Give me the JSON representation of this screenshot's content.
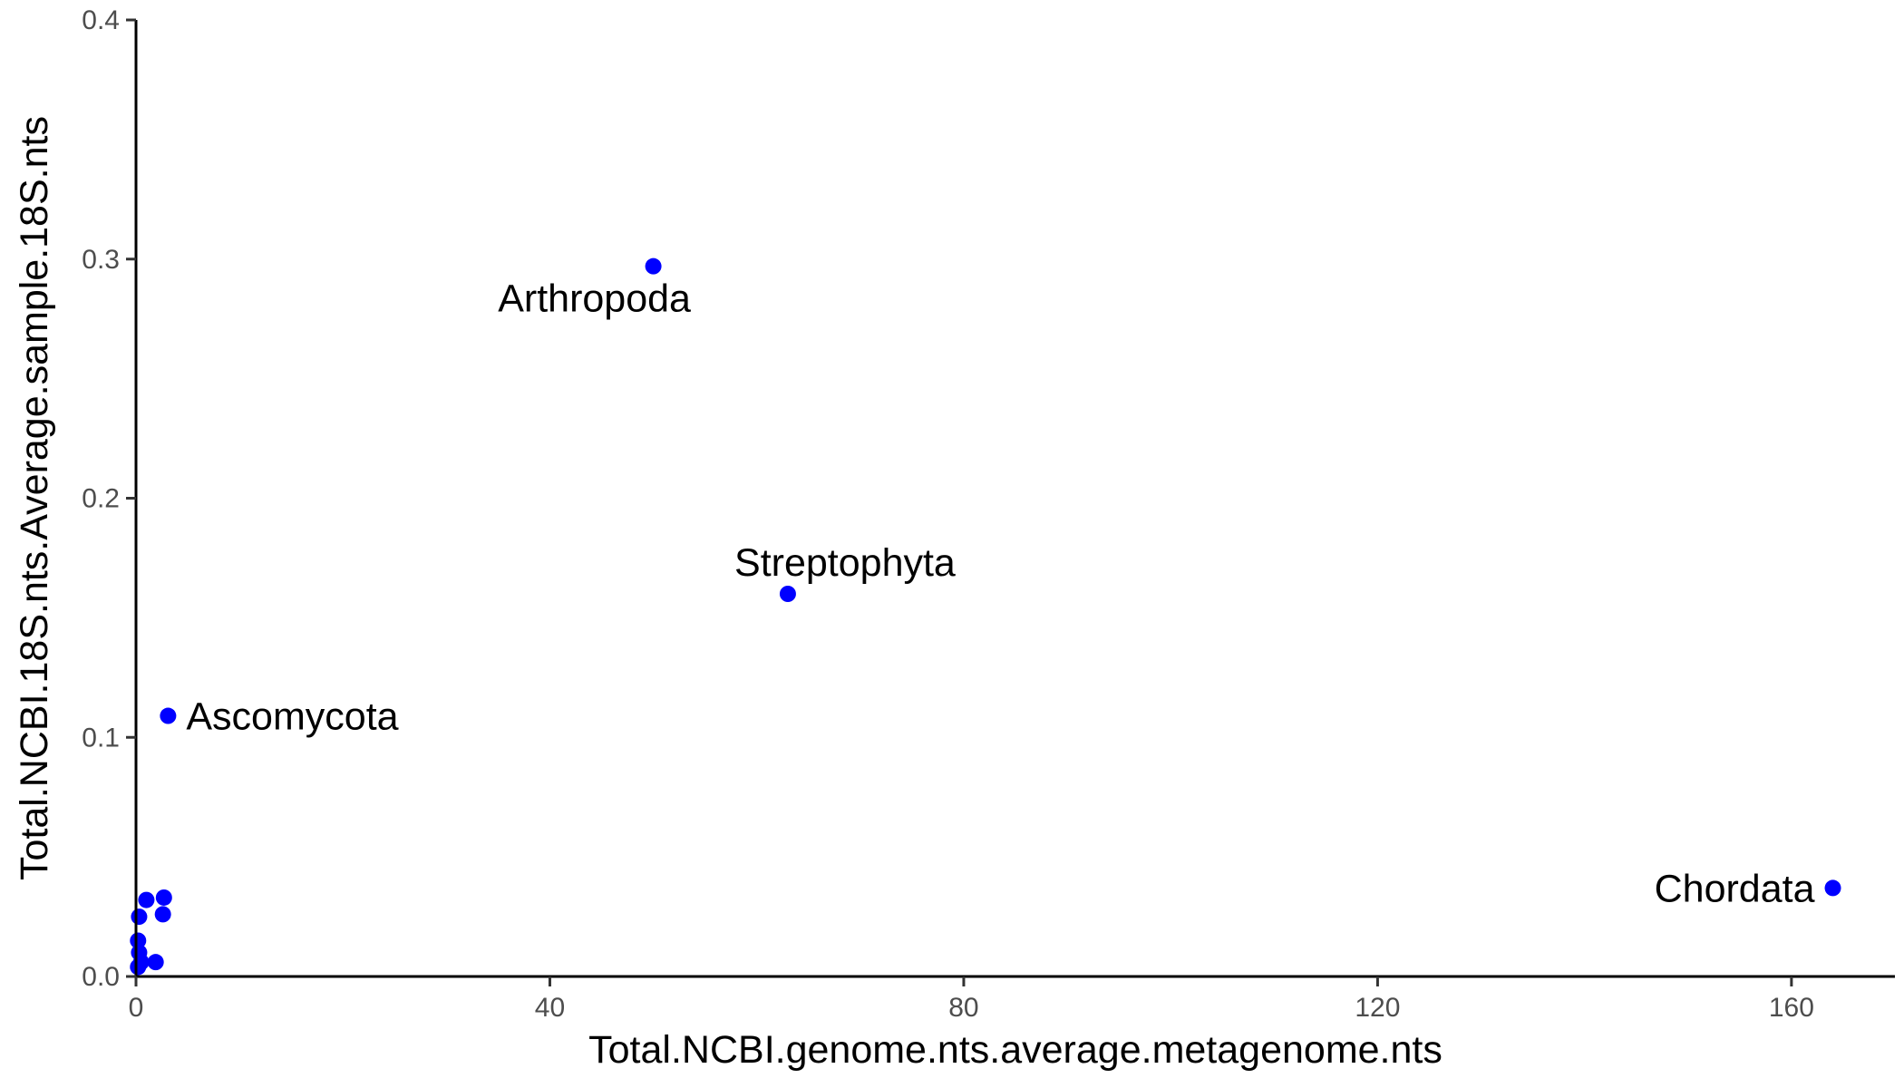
{
  "chart_data": {
    "type": "scatter",
    "title": "",
    "xlabel": "Total.NCBI.genome.nts.average.metagenome.nts",
    "ylabel": "Total.NCBI.18S.nts.Average.sample.18S.nts",
    "xlim": [
      0,
      170
    ],
    "ylim": [
      0,
      0.4
    ],
    "x_ticks": [
      0,
      40,
      80,
      120,
      160
    ],
    "x_tick_labels": [
      "0",
      "40",
      "80",
      "120",
      "160"
    ],
    "y_ticks": [
      0,
      0.1,
      0.2,
      0.3,
      0.4
    ],
    "y_tick_labels": [
      "0.0",
      "0.1",
      "0.2",
      "0.3",
      "0.4"
    ],
    "grid": false,
    "legend": "none",
    "point_color": "#0000ff",
    "series": [
      {
        "points": [
          {
            "x": 50.0,
            "y": 0.297,
            "label": "Arthropoda",
            "label_pos": "below-left"
          },
          {
            "x": 63.0,
            "y": 0.16,
            "label": "Streptophyta",
            "label_pos": "above"
          },
          {
            "x": 3.1,
            "y": 0.109,
            "label": "Ascomycota",
            "label_pos": "right"
          },
          {
            "x": 164.0,
            "y": 0.037,
            "label": "Chordata",
            "label_pos": "left"
          },
          {
            "x": 2.7,
            "y": 0.033
          },
          {
            "x": 1.0,
            "y": 0.032
          },
          {
            "x": 2.6,
            "y": 0.026
          },
          {
            "x": 0.3,
            "y": 0.025
          },
          {
            "x": 0.2,
            "y": 0.015
          },
          {
            "x": 0.3,
            "y": 0.01
          },
          {
            "x": 0.5,
            "y": 0.006
          },
          {
            "x": 1.9,
            "y": 0.006
          },
          {
            "x": 0.2,
            "y": 0.004
          }
        ]
      }
    ]
  }
}
